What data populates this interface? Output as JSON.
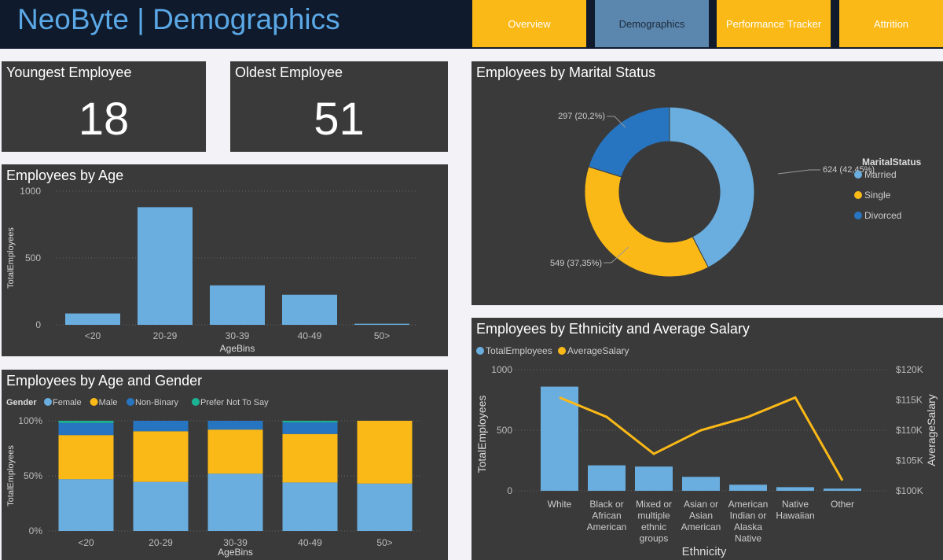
{
  "header": {
    "title": "NeoByte | Demographics",
    "tabs": [
      {
        "label": "Overview",
        "active": false
      },
      {
        "label": "Demographics",
        "active": true
      },
      {
        "label": "Performance Tracker",
        "active": false
      },
      {
        "label": "Attrition",
        "active": false
      }
    ]
  },
  "kpis": {
    "youngest_label": "Youngest Employee",
    "youngest_value": "18",
    "oldest_label": "Oldest Employee",
    "oldest_value": "51"
  },
  "colors": {
    "blue": "#6aaee0",
    "yellow": "#fbb917",
    "darkblue": "#2775c0",
    "teal": "#1bb394"
  },
  "chart_data": [
    {
      "id": "age",
      "type": "bar",
      "title": "Employees by Age",
      "xlabel": "AgeBins",
      "ylabel": "TotalEmployees",
      "categories": [
        "<20",
        "20-29",
        "30-39",
        "40-49",
        "50>"
      ],
      "values": [
        85,
        880,
        295,
        225,
        8
      ],
      "ylim": [
        0,
        1000
      ],
      "yticks": [
        "0",
        "500",
        "1000"
      ]
    },
    {
      "id": "gender",
      "type": "bar",
      "stacked": "percent",
      "title": "Employees by Age and Gender",
      "legend_title": "Gender",
      "xlabel": "AgeBins",
      "ylabel": "TotalEmployees",
      "categories": [
        "<20",
        "20-29",
        "30-39",
        "40-49",
        "50>"
      ],
      "yticks": [
        "0%",
        "50%",
        "100%"
      ],
      "series": [
        {
          "name": "Female",
          "values": [
            47,
            44.5,
            52,
            44,
            43
          ]
        },
        {
          "name": "Male",
          "values": [
            40,
            46,
            40,
            44,
            57
          ]
        },
        {
          "name": "Non-Binary",
          "values": [
            11,
            9.5,
            8,
            10.5,
            0
          ]
        },
        {
          "name": "Prefer Not To Say",
          "values": [
            2,
            0,
            0,
            1.5,
            0
          ]
        }
      ]
    },
    {
      "id": "marital",
      "type": "pie",
      "donut": true,
      "title": "Employees by Marital Status",
      "legend_title": "MaritalStatus",
      "slices": [
        {
          "name": "Married",
          "value": 624,
          "label": "624 (42,45%)"
        },
        {
          "name": "Single",
          "value": 549,
          "label": "549 (37,35%)"
        },
        {
          "name": "Divorced",
          "value": 297,
          "label": "297 (20,2%)"
        }
      ]
    },
    {
      "id": "ethnicity",
      "type": "bar+line",
      "title": "Employees by Ethnicity and Average Salary",
      "xlabel": "Ethnicity",
      "ylabel": "TotalEmployees",
      "y2label": "AverageSalary",
      "categories": [
        [
          "White"
        ],
        [
          "Black or",
          "African",
          "American"
        ],
        [
          "Mixed or",
          "multiple",
          "ethnic",
          "groups"
        ],
        [
          "Asian or",
          "Asian",
          "American"
        ],
        [
          "American",
          "Indian or",
          "Alaska",
          "Native"
        ],
        [
          "Native",
          "Hawaiian"
        ],
        [
          "Other"
        ]
      ],
      "series": [
        {
          "name": "TotalEmployees",
          "values": [
            860,
            210,
            200,
            115,
            50,
            30,
            18
          ]
        },
        {
          "name": "AverageSalary",
          "values": [
            115400,
            112200,
            106100,
            110000,
            112200,
            115400,
            101700
          ]
        }
      ],
      "ylim": [
        0,
        1000
      ],
      "yticks": [
        "0",
        "500",
        "1000"
      ],
      "y2lim": [
        100000,
        120000
      ],
      "y2ticks": [
        "$100K",
        "$105K",
        "$110K",
        "$115K",
        "$120K"
      ]
    }
  ]
}
